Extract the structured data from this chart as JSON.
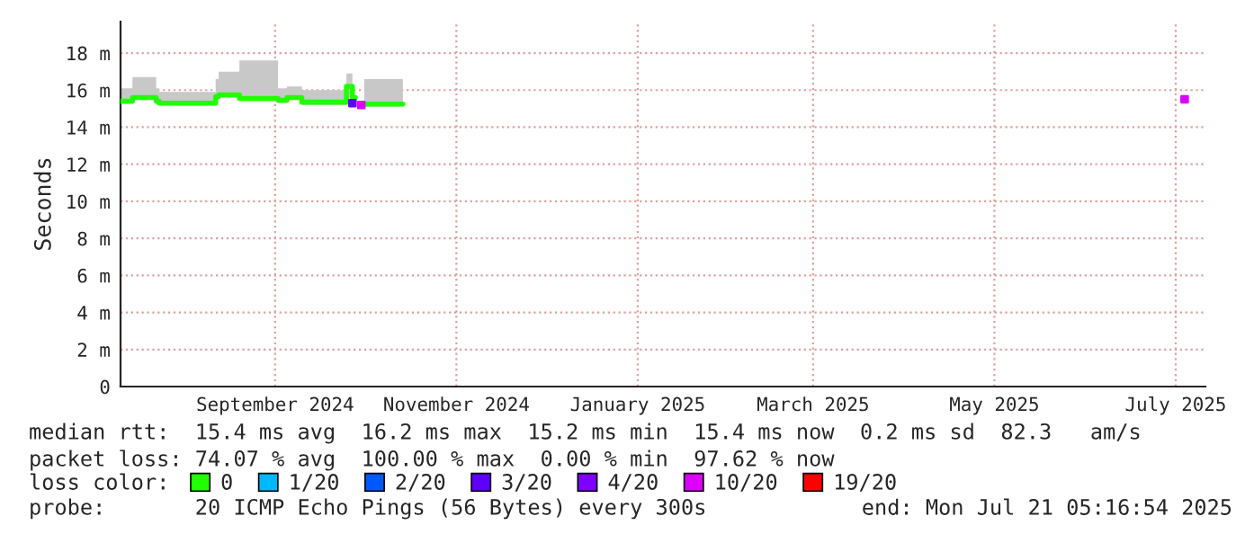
{
  "chart_data": {
    "type": "step",
    "ylabel": "Seconds",
    "x": [
      "2024-07-11",
      "2024-07-15",
      "2024-07-23",
      "2024-07-24",
      "2024-08-12",
      "2024-08-13",
      "2024-08-20",
      "2024-09-02",
      "2024-09-05",
      "2024-09-10",
      "2024-09-25",
      "2024-09-27",
      "2024-09-28",
      "2024-10-01",
      "2024-10-14"
    ],
    "series": [
      {
        "name": "0",
        "color": "#20ff00",
        "values": [
          15.4,
          15.6,
          15.4,
          15.3,
          15.65,
          15.75,
          15.55,
          15.45,
          15.6,
          15.35,
          16.2,
          15.6,
          null,
          15.25,
          15.25
        ],
        "lower": [
          15.3,
          15.5,
          15.3,
          15.2,
          15.5,
          15.6,
          15.4,
          15.3,
          15.5,
          15.2,
          15.6,
          15.5,
          null,
          15.1,
          15.1
        ],
        "upper": [
          16.1,
          16.7,
          16.1,
          15.9,
          16.6,
          17.0,
          17.6,
          16.1,
          16.2,
          16.0,
          16.9,
          16.6,
          null,
          16.6,
          16.1
        ]
      },
      {
        "name": "1/20",
        "color": "#00b8ff",
        "type": "scatter",
        "values": [
          null,
          null,
          null,
          null,
          null,
          null,
          null,
          null,
          null,
          null,
          null,
          null,
          null,
          null,
          null
        ]
      },
      {
        "name": "2/20",
        "color": "#0059ff",
        "type": "scatter",
        "values": [
          null,
          null,
          null,
          null,
          null,
          null,
          null,
          null,
          null,
          null,
          null,
          null,
          null,
          null,
          null
        ]
      },
      {
        "name": "3/20",
        "color": "#5e00ff",
        "type": "scatter",
        "x": [
          "2024-09-27"
        ],
        "values": [
          15.3
        ]
      },
      {
        "name": "4/20",
        "color": "#7e00ff",
        "type": "scatter",
        "values": [
          null,
          null,
          null,
          null,
          null,
          null,
          null,
          null,
          null,
          null,
          null,
          null,
          null,
          null,
          null
        ]
      },
      {
        "name": "10/20",
        "color": "#dd00ff",
        "type": "scatter",
        "x": [
          "2024-09-30",
          "2025-07-04"
        ],
        "values": [
          15.2,
          15.5
        ]
      },
      {
        "name": "19/20",
        "color": "#ff0000",
        "type": "scatter",
        "values": [
          null,
          null,
          null,
          null,
          null,
          null,
          null,
          null,
          null,
          null,
          null,
          null,
          null,
          null,
          null
        ]
      }
    ],
    "xlim": [
      "2024-07-11",
      "2025-07-11"
    ],
    "xticks": [
      {
        "value": "2024-09-01",
        "label": "September 2024"
      },
      {
        "value": "2024-11-01",
        "label": "November 2024"
      },
      {
        "value": "2025-01-01",
        "label": "January 2025"
      },
      {
        "value": "2025-03-01",
        "label": "March 2025"
      },
      {
        "value": "2025-05-01",
        "label": "May 2025"
      },
      {
        "value": "2025-07-01",
        "label": "July 2025"
      }
    ],
    "ylim": [
      0,
      19.7
    ],
    "yticks": [
      0,
      {
        "value": 2,
        "label": "2 m"
      },
      {
        "value": 4,
        "label": "4 m"
      },
      {
        "value": 6,
        "label": "6 m"
      },
      {
        "value": 8,
        "label": "8 m"
      },
      {
        "value": 10,
        "label": "10 m"
      },
      {
        "value": 12,
        "label": "12 m"
      },
      {
        "value": 14,
        "label": "14 m"
      },
      {
        "value": 16,
        "label": "16 m"
      },
      {
        "value": 18,
        "label": "18 m"
      }
    ],
    "grid": true,
    "legend": "bottom",
    "legend_title": "loss color:",
    "annotations": [
      "median rtt:  15.4 ms avg  16.2 ms max  15.2 ms min  15.4 ms now  0.2 ms sd  82.3   am/s",
      "packet loss: 74.07 % avg  100.00 % max  0.00 % min  97.62 % now",
      "probe:       20 ICMP Echo Pings (56 Bytes) every 300s",
      "end: Mon Jul 21 05:16:54 2025"
    ]
  }
}
